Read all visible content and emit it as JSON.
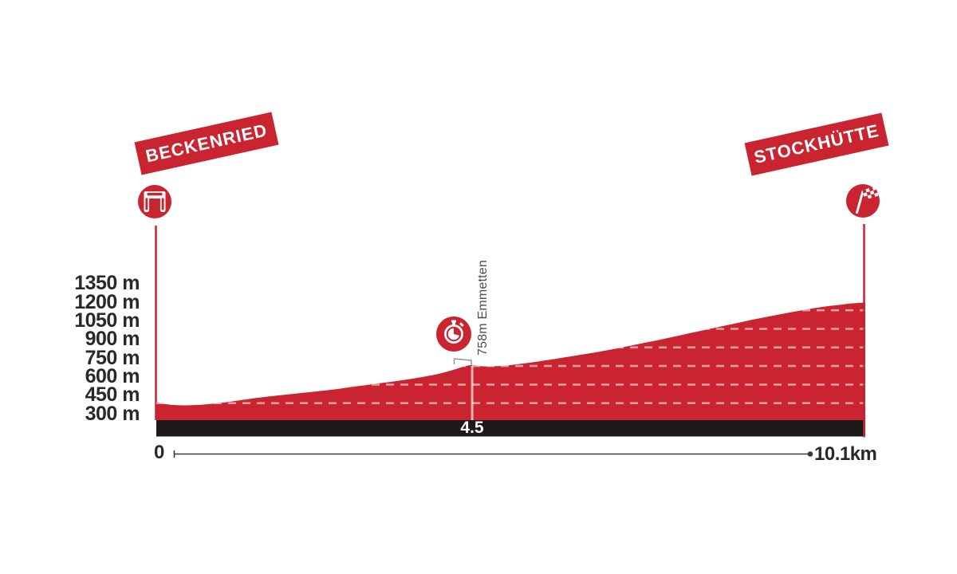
{
  "chart_data": {
    "type": "area",
    "title": "",
    "xlabel_start": "0",
    "xlabel_end": "10.1km",
    "x_range_km": [
      0,
      10.1
    ],
    "ylim": [
      300,
      1350
    ],
    "grid": "dashed horizontal lines inside profile area only",
    "legend": "none",
    "yticks": [
      {
        "value": 1350,
        "label": "1350 m"
      },
      {
        "value": 1200,
        "label": "1200 m"
      },
      {
        "value": 1050,
        "label": "1050 m"
      },
      {
        "value": 900,
        "label": "900 m"
      },
      {
        "value": 750,
        "label": "750 m"
      },
      {
        "value": 600,
        "label": "600 m"
      },
      {
        "value": 450,
        "label": "450 m"
      },
      {
        "value": 300,
        "label": "300 m"
      }
    ],
    "profile_km_elevation": [
      [
        0.0,
        460
      ],
      [
        0.12,
        443
      ],
      [
        0.3,
        433
      ],
      [
        0.5,
        433
      ],
      [
        0.75,
        442
      ],
      [
        1.0,
        458
      ],
      [
        1.25,
        478
      ],
      [
        1.5,
        497
      ],
      [
        1.75,
        513
      ],
      [
        2.0,
        528
      ],
      [
        2.3,
        546
      ],
      [
        2.6,
        566
      ],
      [
        2.9,
        590
      ],
      [
        3.2,
        612
      ],
      [
        3.5,
        635
      ],
      [
        3.8,
        662
      ],
      [
        4.05,
        690
      ],
      [
        4.25,
        722
      ],
      [
        4.4,
        748
      ],
      [
        4.5,
        758
      ],
      [
        4.6,
        750
      ],
      [
        4.75,
        747
      ],
      [
        4.95,
        752
      ],
      [
        5.2,
        768
      ],
      [
        5.5,
        792
      ],
      [
        5.8,
        818
      ],
      [
        6.1,
        845
      ],
      [
        6.4,
        875
      ],
      [
        6.7,
        908
      ],
      [
        7.0,
        942
      ],
      [
        7.3,
        978
      ],
      [
        7.6,
        1015
      ],
      [
        7.9,
        1052
      ],
      [
        8.2,
        1088
      ],
      [
        8.5,
        1125
      ],
      [
        8.8,
        1158
      ],
      [
        9.1,
        1190
      ],
      [
        9.35,
        1215
      ],
      [
        9.55,
        1232
      ],
      [
        9.7,
        1242
      ],
      [
        9.85,
        1252
      ],
      [
        9.95,
        1257
      ],
      [
        10.05,
        1261
      ],
      [
        10.1,
        1262
      ]
    ],
    "markers": [
      {
        "type": "start",
        "label": "BECKENRIED",
        "km": 0,
        "icon": "start-arch"
      },
      {
        "type": "timecheck",
        "label": "4.5",
        "km": 4.5,
        "elevation_m": 758,
        "note": "758m Emmetten",
        "icon": "stopwatch"
      },
      {
        "type": "finish",
        "label": "STOCKHÜTTE",
        "km": 10.1,
        "icon": "checkered-flag"
      }
    ],
    "colors": {
      "profile_red": "#c9242f",
      "bar_black": "#1d1b19",
      "grid_dash": "rgba(255,255,255,0.55)",
      "marker_line": "rgba(255,255,255,0.65)",
      "text_dark": "#2a2927",
      "note_gray": "#4e4c4a",
      "axis_gray": "#3a3937"
    }
  }
}
